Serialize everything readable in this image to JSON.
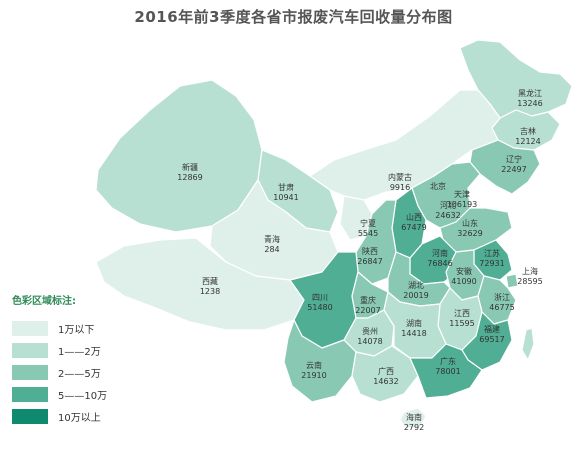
{
  "title": "2016年前3季度各省市报废汽车回收量分布图",
  "legend": {
    "title": "色彩区域标注:",
    "items": [
      {
        "label": "1万以下",
        "color": "#dff0ea"
      },
      {
        "label": "1——2万",
        "color": "#b8e0d2"
      },
      {
        "label": "2——5万",
        "color": "#89c9b4"
      },
      {
        "label": "5——10万",
        "color": "#4fae93"
      },
      {
        "label": "10万以上",
        "color": "#0f8a6e"
      }
    ]
  },
  "provinces": [
    {
      "name": "黑龙江",
      "value": "13246",
      "color": "#b8e0d2"
    },
    {
      "name": "吉林",
      "value": "12124",
      "color": "#b8e0d2"
    },
    {
      "name": "辽宁",
      "value": "22497",
      "color": "#89c9b4"
    },
    {
      "name": "新疆",
      "value": "12869",
      "color": "#b8e0d2"
    },
    {
      "name": "甘肃",
      "value": "10941",
      "color": "#b8e0d2"
    },
    {
      "name": "内蒙古",
      "value": "9916",
      "color": "#dff0ea"
    },
    {
      "name": "北京",
      "value": "",
      "color": "#4fae93"
    },
    {
      "name": "天津",
      "value": "106193",
      "color": "#0f8a6e"
    },
    {
      "name": "河北",
      "value": "24632",
      "color": "#89c9b4"
    },
    {
      "name": "山西",
      "value": "67479",
      "color": "#4fae93"
    },
    {
      "name": "山东",
      "value": "32629",
      "color": "#89c9b4"
    },
    {
      "name": "宁夏",
      "value": "5545",
      "color": "#dff0ea"
    },
    {
      "name": "青海",
      "value": "284",
      "color": "#dff0ea"
    },
    {
      "name": "陕西",
      "value": "26847",
      "color": "#89c9b4"
    },
    {
      "name": "河南",
      "value": "76846",
      "color": "#4fae93"
    },
    {
      "name": "江苏",
      "value": "72931",
      "color": "#4fae93"
    },
    {
      "name": "安徽",
      "value": "41090",
      "color": "#89c9b4"
    },
    {
      "name": "上海",
      "value": "28595",
      "color": "#89c9b4"
    },
    {
      "name": "西藏",
      "value": "1238",
      "color": "#dff0ea"
    },
    {
      "name": "四川",
      "value": "51480",
      "color": "#4fae93"
    },
    {
      "name": "重庆",
      "value": "22007",
      "color": "#89c9b4"
    },
    {
      "name": "湖北",
      "value": "20019",
      "color": "#89c9b4"
    },
    {
      "name": "浙江",
      "value": "46775",
      "color": "#89c9b4"
    },
    {
      "name": "江西",
      "value": "11595",
      "color": "#b8e0d2"
    },
    {
      "name": "贵州",
      "value": "14078",
      "color": "#b8e0d2"
    },
    {
      "name": "湖南",
      "value": "14418",
      "color": "#b8e0d2"
    },
    {
      "name": "福建",
      "value": "69517",
      "color": "#4fae93"
    },
    {
      "name": "云南",
      "value": "21910",
      "color": "#89c9b4"
    },
    {
      "name": "广西",
      "value": "14632",
      "color": "#b8e0d2"
    },
    {
      "name": "广东",
      "value": "78001",
      "color": "#4fae93"
    },
    {
      "name": "海南",
      "value": "2792",
      "color": "#dff0ea"
    }
  ]
}
